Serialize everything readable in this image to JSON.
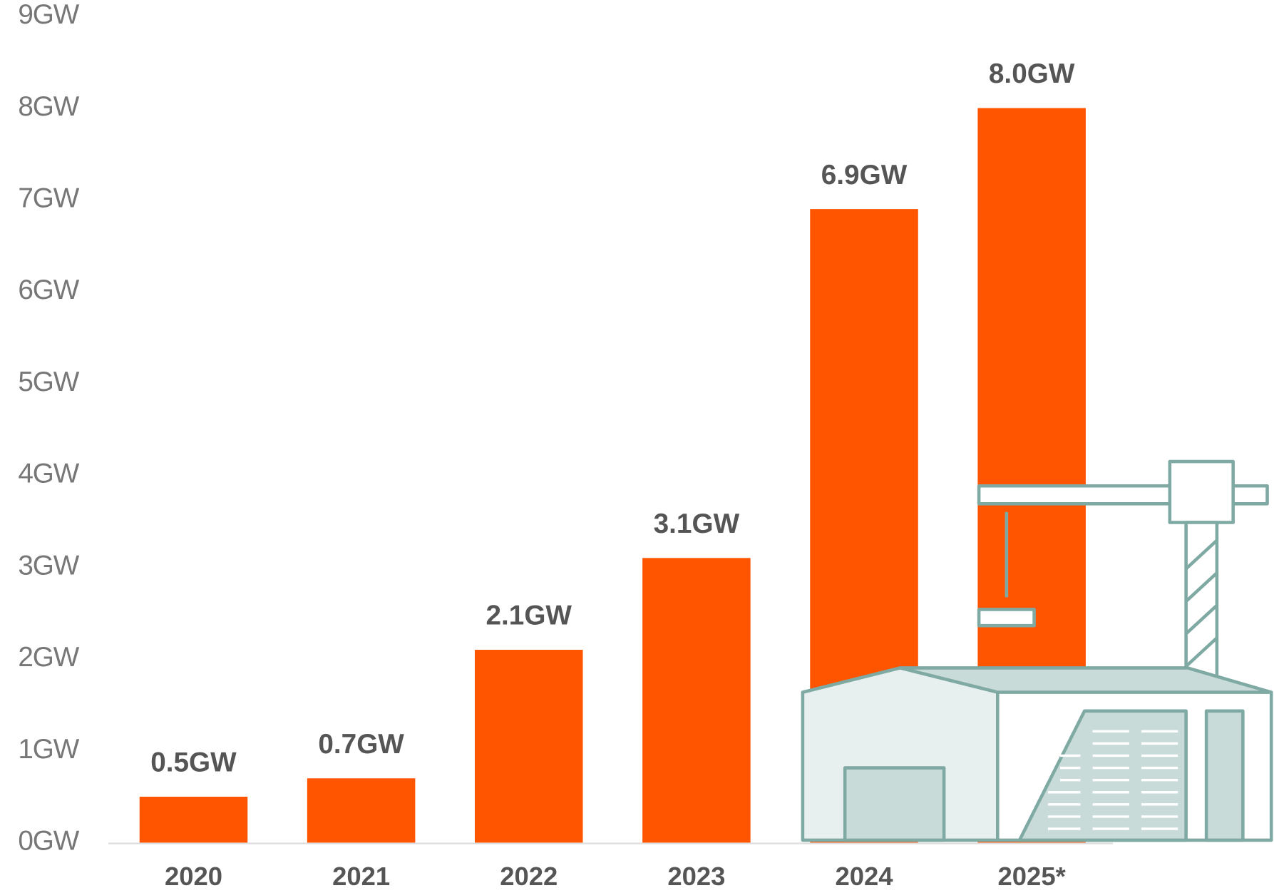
{
  "chart_data": {
    "type": "bar",
    "categories": [
      "2020",
      "2021",
      "2022",
      "2023",
      "2024",
      "2025*"
    ],
    "values": [
      0.5,
      0.7,
      2.1,
      3.1,
      6.9,
      8.0
    ],
    "value_labels": [
      "0.5GW",
      "0.7GW",
      "2.1GW",
      "3.1GW",
      "6.9GW",
      "8.0GW"
    ],
    "color": "#ff5500",
    "ylim": [
      0,
      9
    ],
    "yticks": [
      {
        "value": 0,
        "label": "0GW"
      },
      {
        "value": 1,
        "label": "1GW"
      },
      {
        "value": 2,
        "label": "2GW"
      },
      {
        "value": 3,
        "label": "3GW"
      },
      {
        "value": 4,
        "label": "4GW"
      },
      {
        "value": 5,
        "label": "5GW"
      },
      {
        "value": 6,
        "label": "6GW"
      },
      {
        "value": 7,
        "label": "7GW"
      },
      {
        "value": 8,
        "label": "8GW"
      },
      {
        "value": 9,
        "label": "9GW"
      }
    ],
    "grid": false
  }
}
